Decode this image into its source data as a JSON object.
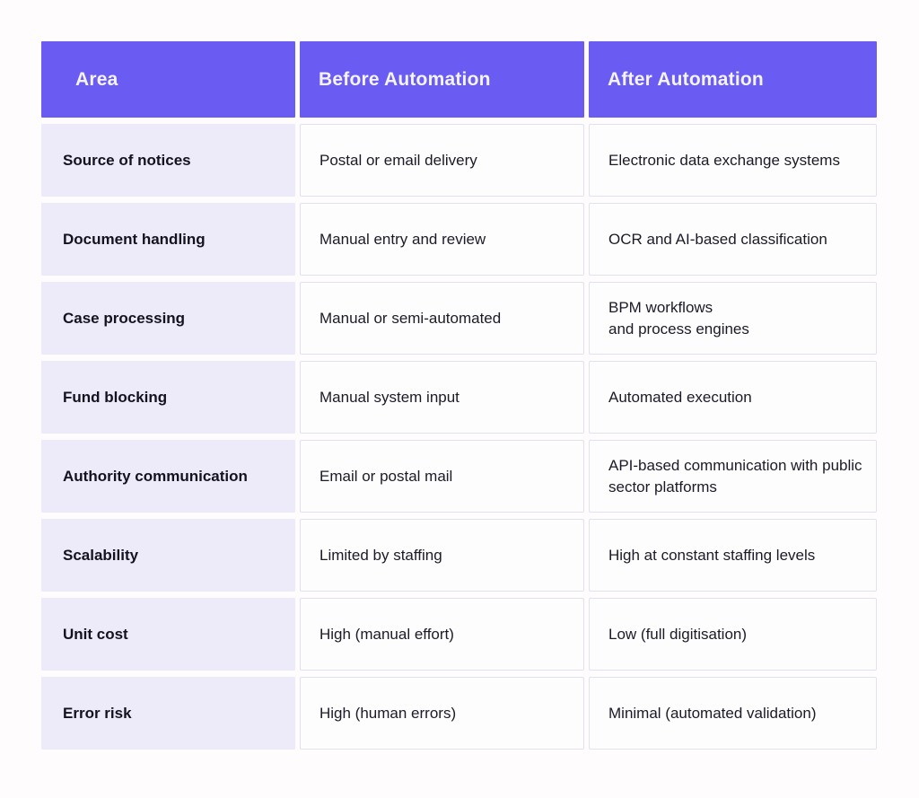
{
  "colors": {
    "page_background": "#FFFCFE",
    "header_background": "#6A5CF2",
    "header_text": "#F5F3FD",
    "area_cell_background": "#EDEBF9",
    "data_cell_background": "#FEFDFE",
    "data_cell_border": "#E3E1F0",
    "body_text": "#1C1A26"
  },
  "chart_data": {
    "type": "table",
    "title": "",
    "columns": [
      "Area",
      "Before Automation",
      "After Automation"
    ],
    "rows": [
      [
        "Source of notices",
        "Postal or email delivery",
        "Electronic data exchange systems"
      ],
      [
        "Document handling",
        "Manual entry and review",
        "OCR and AI-based classification"
      ],
      [
        "Case processing",
        "Manual or semi-automated",
        "BPM workflows\nand process engines"
      ],
      [
        "Fund blocking",
        "Manual system input",
        "Automated execution"
      ],
      [
        "Authority communication",
        "Email or postal mail",
        "API-based communication with public sector platforms"
      ],
      [
        "Scalability",
        "Limited by staffing",
        "High at constant staffing levels"
      ],
      [
        "Unit cost",
        "High (manual effort)",
        "Low (full digitisation)"
      ],
      [
        "Error risk",
        "High (human errors)",
        "Minimal (automated validation)"
      ]
    ]
  }
}
